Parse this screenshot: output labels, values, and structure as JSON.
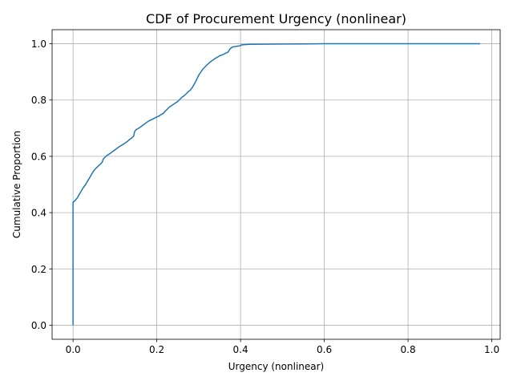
{
  "chart_data": {
    "type": "line",
    "title": "CDF of Procurement Urgency (nonlinear)",
    "xlabel": "Urgency (nonlinear)",
    "ylabel": "Cumulative Proportion",
    "xlim": [
      -0.05,
      1.02
    ],
    "ylim": [
      -0.05,
      1.05
    ],
    "xticks": [
      0.0,
      0.2,
      0.4,
      0.6,
      0.8,
      1.0
    ],
    "xtick_labels": [
      "0.0",
      "0.2",
      "0.4",
      "0.6",
      "0.8",
      "1.0"
    ],
    "yticks": [
      0.0,
      0.2,
      0.4,
      0.6,
      0.8,
      1.0
    ],
    "ytick_labels": [
      "0.0",
      "0.2",
      "0.4",
      "0.6",
      "0.8",
      "1.0"
    ],
    "grid": true,
    "series": [
      {
        "color": "#1f77b4",
        "x": [
          0.0,
          0.0,
          0.0,
          0.005,
          0.01,
          0.015,
          0.02,
          0.025,
          0.03,
          0.035,
          0.04,
          0.045,
          0.05,
          0.055,
          0.06,
          0.065,
          0.07,
          0.072,
          0.075,
          0.08,
          0.085,
          0.09,
          0.1,
          0.11,
          0.12,
          0.13,
          0.135,
          0.14,
          0.145,
          0.147,
          0.15,
          0.16,
          0.17,
          0.18,
          0.19,
          0.2,
          0.205,
          0.21,
          0.215,
          0.22,
          0.23,
          0.24,
          0.245,
          0.25,
          0.26,
          0.265,
          0.27,
          0.275,
          0.28,
          0.285,
          0.29,
          0.295,
          0.3,
          0.31,
          0.32,
          0.33,
          0.34,
          0.35,
          0.36,
          0.365,
          0.37,
          0.375,
          0.38,
          0.39,
          0.4,
          0.402,
          0.41,
          0.42,
          0.5,
          0.6,
          0.7,
          0.8,
          0.9,
          0.972
        ],
        "y": [
          0.0,
          0.2,
          0.437,
          0.443,
          0.452,
          0.465,
          0.478,
          0.49,
          0.5,
          0.513,
          0.525,
          0.538,
          0.55,
          0.558,
          0.565,
          0.572,
          0.58,
          0.59,
          0.595,
          0.602,
          0.607,
          0.612,
          0.623,
          0.634,
          0.643,
          0.653,
          0.66,
          0.665,
          0.672,
          0.688,
          0.694,
          0.703,
          0.714,
          0.725,
          0.732,
          0.74,
          0.743,
          0.748,
          0.752,
          0.76,
          0.775,
          0.785,
          0.79,
          0.795,
          0.81,
          0.815,
          0.822,
          0.83,
          0.835,
          0.845,
          0.858,
          0.872,
          0.888,
          0.91,
          0.925,
          0.938,
          0.948,
          0.957,
          0.963,
          0.967,
          0.97,
          0.982,
          0.988,
          0.991,
          0.993,
          0.996,
          0.997,
          0.998,
          0.999,
          1.0,
          1.0,
          1.0,
          1.0,
          1.0
        ]
      }
    ]
  }
}
